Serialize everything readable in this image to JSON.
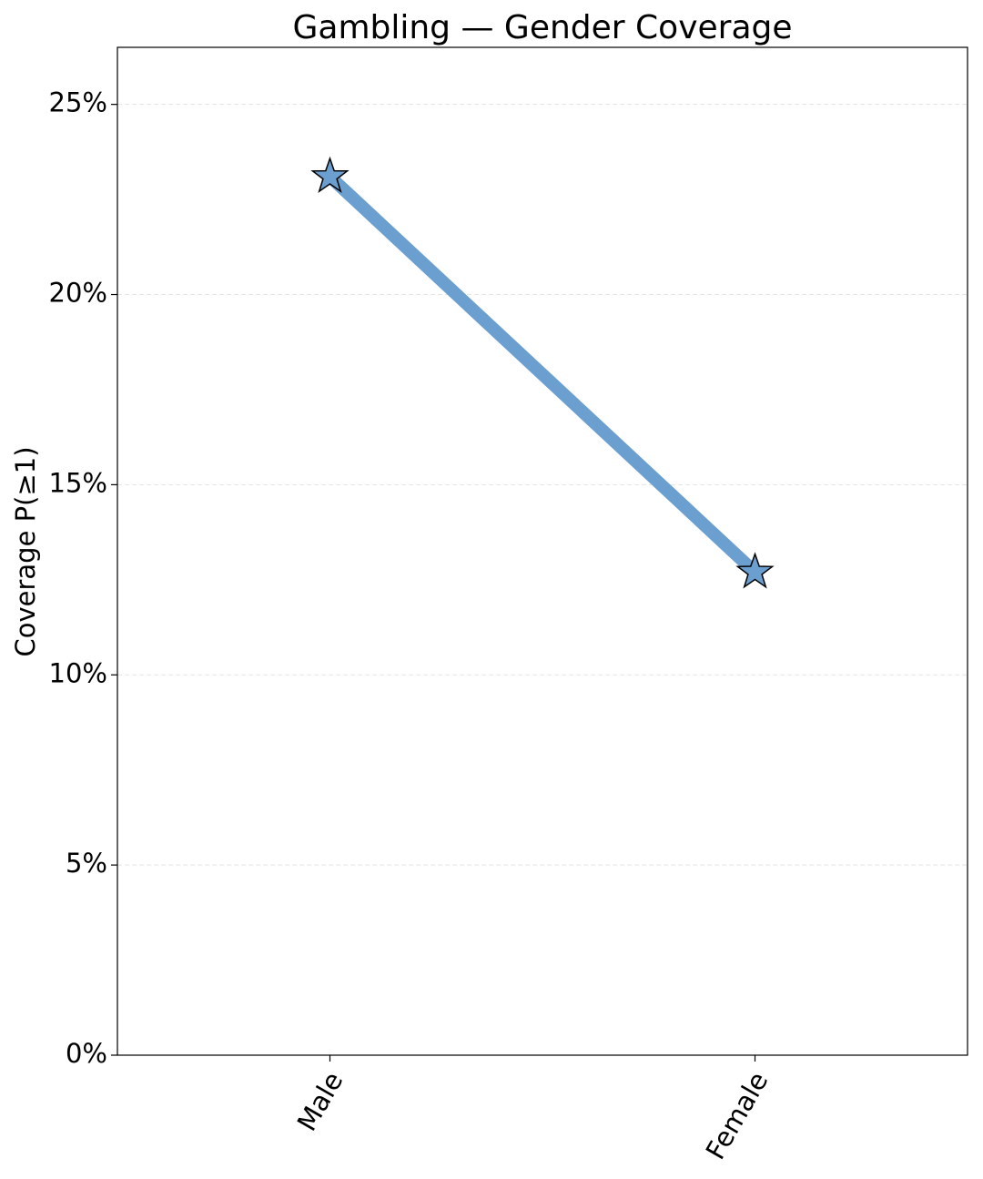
{
  "chart_data": {
    "type": "line",
    "title": "Gambling — Gender Coverage",
    "y_label": "Coverage P(≥1)",
    "categories": [
      "Male",
      "Female"
    ],
    "values": [
      23.1,
      12.7
    ],
    "color": "#6a9fcf",
    "marker": "star",
    "ylim": [
      0,
      26.5
    ],
    "yticks": [
      {
        "value": 0,
        "label": "0%"
      },
      {
        "value": 5,
        "label": "5%"
      },
      {
        "value": 10,
        "label": "10%"
      },
      {
        "value": 15,
        "label": "15%"
      },
      {
        "value": 20,
        "label": "20%"
      },
      {
        "value": 25,
        "label": "25%"
      }
    ],
    "grid": true
  }
}
